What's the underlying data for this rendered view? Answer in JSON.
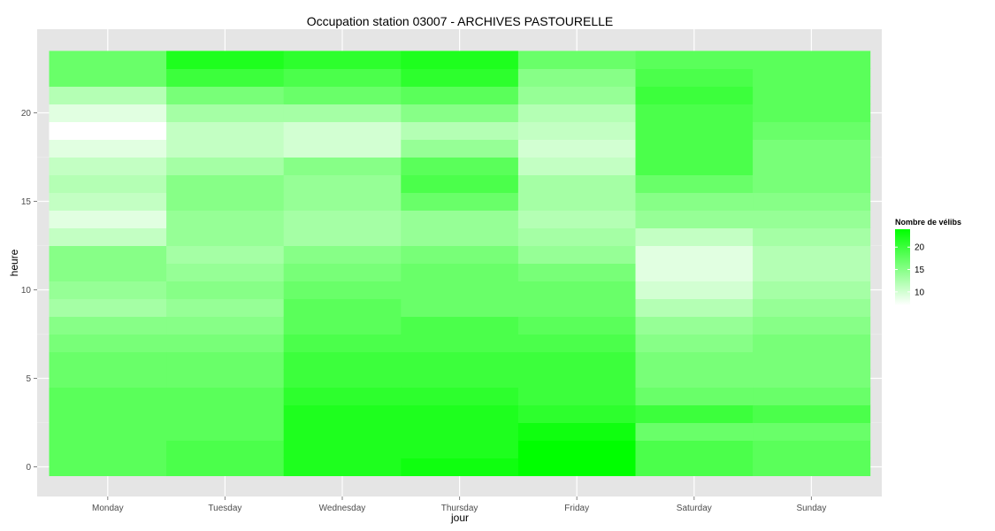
{
  "chart_data": {
    "type": "heatmap",
    "title": "Occupation station 03007 - ARCHIVES PASTOURELLE",
    "xlabel": "jour",
    "ylabel": "heure",
    "x_categories": [
      "Monday",
      "Tuesday",
      "Wednesday",
      "Thursday",
      "Friday",
      "Saturday",
      "Sunday"
    ],
    "y_range": [
      -0.5,
      23.5
    ],
    "y_ticks": [
      0,
      5,
      10,
      15,
      20
    ],
    "grid": true,
    "legend": {
      "title": "Nombre de vélibs",
      "position": "right",
      "ticks": [
        10,
        15,
        20
      ],
      "range": [
        7,
        24
      ],
      "low_color": "#ffffff",
      "high_color": "#00ff00"
    },
    "series": [
      {
        "day": "Monday",
        "values": [
          18,
          18,
          18,
          18,
          18,
          17,
          17,
          16,
          15,
          13,
          14,
          15,
          15,
          11,
          9,
          11,
          12,
          11,
          9,
          7,
          9,
          12,
          17,
          17
        ]
      },
      {
        "day": "Tuesday",
        "values": [
          19,
          19,
          18,
          18,
          18,
          17,
          17,
          16,
          15,
          14,
          15,
          14,
          13,
          14,
          14,
          15,
          15,
          13,
          11,
          11,
          13,
          16,
          20,
          22
        ]
      },
      {
        "day": "Wednesday",
        "values": [
          22,
          22,
          22,
          22,
          21,
          20,
          20,
          19,
          18,
          18,
          17,
          16,
          15,
          13,
          13,
          14,
          14,
          15,
          10,
          10,
          13,
          17,
          19,
          21
        ]
      },
      {
        "day": "Thursday",
        "values": [
          23,
          22,
          22,
          22,
          21,
          20,
          20,
          19,
          19,
          17,
          17,
          17,
          16,
          14,
          14,
          17,
          19,
          18,
          14,
          12,
          15,
          18,
          21,
          22
        ]
      },
      {
        "day": "Friday",
        "values": [
          24,
          24,
          23,
          21,
          20,
          20,
          20,
          19,
          18,
          17,
          17,
          16,
          14,
          13,
          12,
          13,
          13,
          11,
          10,
          11,
          12,
          14,
          15,
          17
        ]
      },
      {
        "day": "Saturday",
        "values": [
          19,
          19,
          17,
          20,
          17,
          16,
          16,
          15,
          14,
          12,
          10,
          9,
          9,
          11,
          14,
          15,
          17,
          19,
          19,
          19,
          19,
          20,
          19,
          18
        ]
      },
      {
        "day": "Sunday",
        "values": [
          18,
          18,
          17,
          19,
          17,
          16,
          16,
          16,
          15,
          14,
          13,
          12,
          12,
          13,
          14,
          15,
          16,
          16,
          16,
          17,
          18,
          18,
          18,
          18
        ]
      }
    ]
  }
}
